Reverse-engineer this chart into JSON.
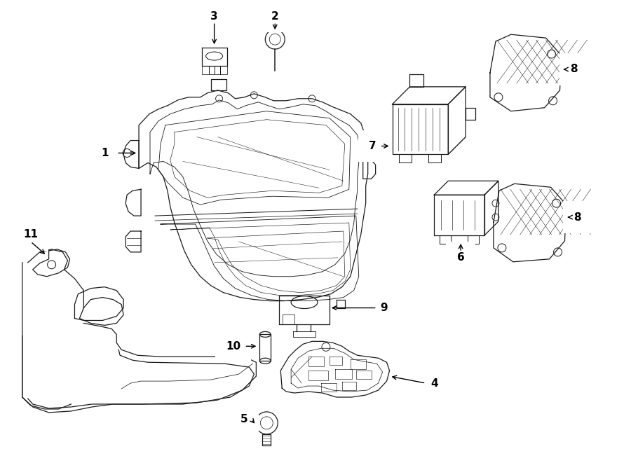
{
  "bg_color": "#ffffff",
  "line_color": "#1a1a1a",
  "fig_width": 9.0,
  "fig_height": 6.61,
  "dpi": 100,
  "lw": 0.9,
  "label_fontsize": 11
}
